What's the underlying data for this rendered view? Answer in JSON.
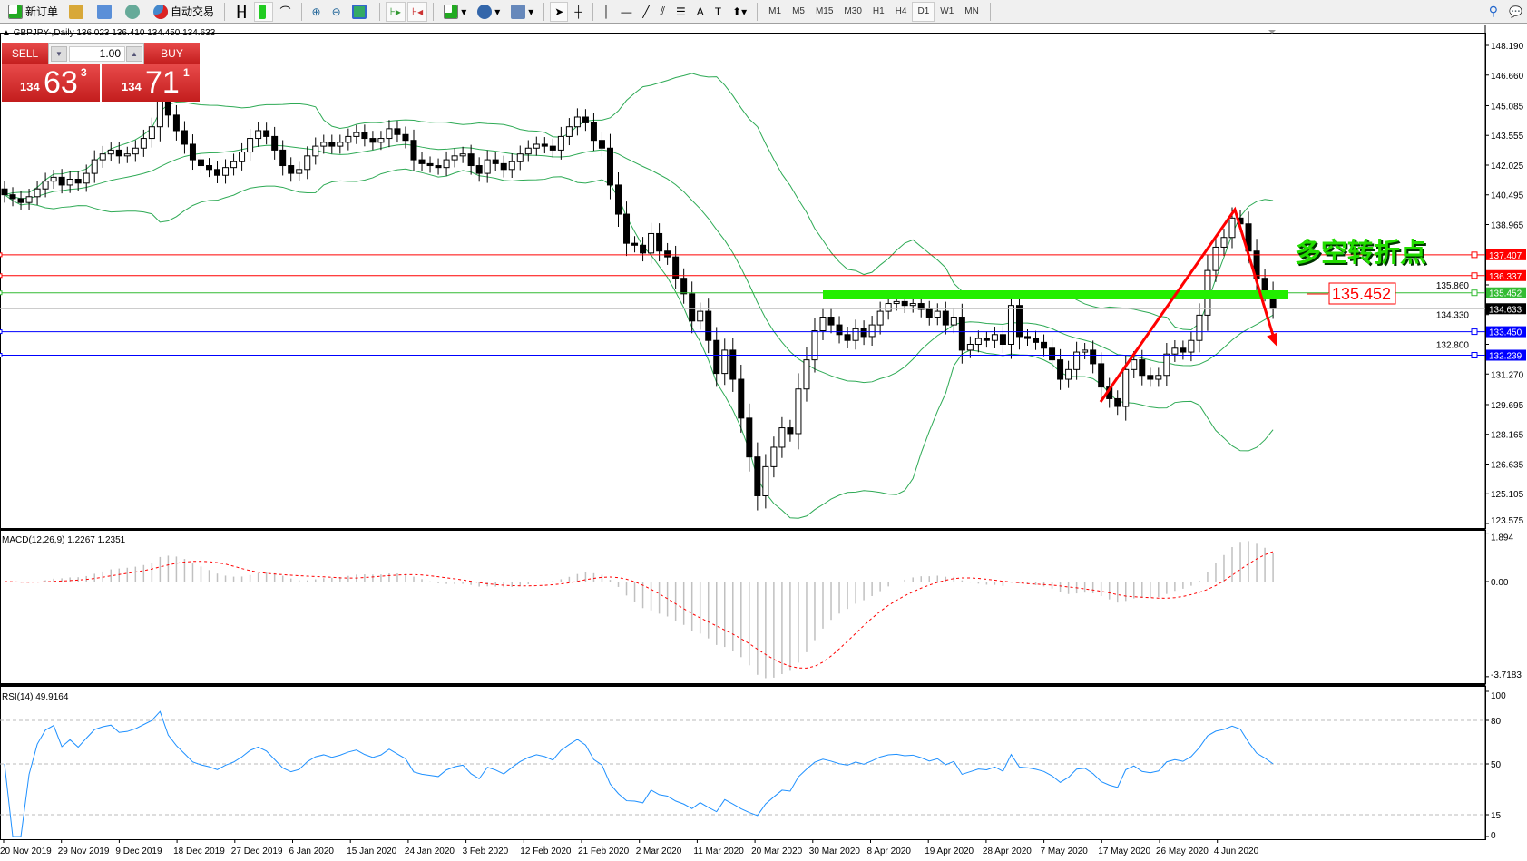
{
  "toolbar": {
    "new_order": "新订单",
    "auto_trading": "自动交易",
    "timeframes": [
      "M1",
      "M5",
      "M15",
      "M30",
      "H1",
      "H4",
      "D1",
      "W1",
      "MN"
    ],
    "active_timeframe": "D1",
    "icons": [
      "new-order-icon",
      "navigator-icon",
      "terminal-icon",
      "signal-icon",
      "auto-trading-icon",
      "bar-chart-icon",
      "candlestick-icon",
      "line-chart-icon",
      "zoom-in-icon",
      "zoom-out-icon",
      "tile-windows-icon",
      "auto-scroll-icon",
      "chart-shift-icon",
      "indicators-icon",
      "periods-icon",
      "templates-icon",
      "cursor-icon",
      "crosshair-icon",
      "vertical-line-icon",
      "horizontal-line-icon",
      "trendline-icon",
      "equidistant-channel-icon",
      "fibonacci-icon",
      "text-icon",
      "text-label-icon",
      "arrows-icon",
      "search-icon",
      "chat-icon"
    ]
  },
  "chart_header": {
    "symbol": "GBPJPY-,Daily",
    "ohlc": "136.023 136.410 134.450 134.633"
  },
  "one_click": {
    "sell": "SELL",
    "buy": "BUY",
    "lot": "1.00",
    "sell_price": {
      "prefix": "134",
      "big": "63",
      "sup": "3"
    },
    "buy_price": {
      "prefix": "134",
      "big": "71",
      "sup": "1"
    }
  },
  "annotation": {
    "text": "多空转折点",
    "price_box": "135.452",
    "text_color": "#22dd00"
  },
  "chart_data": [
    {
      "type": "candlestick",
      "title": "GBPJPY-,Daily",
      "close": [
        140.5,
        140.3,
        140.1,
        140.4,
        140.8,
        141.2,
        141.4,
        141.0,
        141.3,
        141.1,
        141.6,
        142.3,
        142.6,
        142.8,
        142.5,
        142.6,
        142.9,
        143.4,
        144.0,
        146.0,
        144.6,
        143.8,
        143.1,
        142.3,
        142.0,
        141.8,
        141.5,
        141.9,
        142.2,
        142.7,
        143.4,
        143.8,
        143.5,
        142.8,
        142.0,
        141.6,
        141.8,
        142.5,
        143.0,
        143.2,
        143.0,
        143.2,
        143.5,
        143.7,
        143.4,
        143.2,
        143.4,
        143.9,
        143.6,
        143.3,
        142.3,
        142.1,
        142.0,
        141.9,
        142.3,
        142.5,
        142.6,
        142.0,
        141.6,
        142.3,
        142.1,
        141.8,
        142.2,
        142.6,
        142.9,
        143.1,
        143.0,
        142.8,
        143.5,
        144.0,
        144.5,
        144.2,
        143.3,
        142.9,
        141.0,
        139.5,
        138.0,
        137.9,
        137.5,
        138.5,
        137.6,
        137.3,
        136.2,
        135.4,
        134.0,
        134.5,
        133.0,
        131.3,
        132.5,
        131.0,
        129.0,
        127.0,
        125.0,
        126.5,
        127.5,
        128.5,
        128.2,
        130.5,
        132.0,
        133.5,
        134.2,
        133.8,
        133.3,
        133.0,
        133.6,
        133.2,
        133.8,
        134.5,
        134.9,
        135.0,
        134.8,
        134.9,
        134.6,
        134.2,
        134.5,
        133.8,
        134.2,
        132.5,
        132.8,
        133.1,
        133.0,
        133.3,
        132.8,
        134.8,
        133.2,
        133.1,
        132.9,
        132.6,
        132.0,
        131.0,
        131.5,
        132.4,
        132.5,
        131.8,
        130.6,
        130.0,
        129.6,
        131.5,
        132.0,
        131.2,
        131.0,
        131.2,
        132.3,
        132.6,
        132.4,
        133.0,
        134.3,
        136.6,
        137.8,
        138.3,
        139.3,
        139.0,
        137.6,
        136.2,
        135.5,
        134.633
      ],
      "indicator": "Bollinger Bands",
      "y_ticks": [
        "148.190",
        "146.660",
        "145.085",
        "143.555",
        "142.025",
        "140.495",
        "138.965",
        "135.860",
        "134.330",
        "132.800",
        "131.270",
        "129.695",
        "128.165",
        "126.635",
        "125.105",
        "123.575"
      ],
      "ylim": [
        123.575,
        148.19
      ],
      "levels": [
        {
          "price": "137.407",
          "color": "#ff0000"
        },
        {
          "price": "136.337",
          "color": "#ff0000"
        },
        {
          "price": "135.452",
          "color": "#33bb33"
        },
        {
          "price": "134.633",
          "color": "#000000"
        },
        {
          "price": "133.450",
          "color": "#0000ff"
        },
        {
          "price": "132.239",
          "color": "#0000ff"
        }
      ],
      "x_ticks": [
        "20 Nov 2019",
        "29 Nov 2019",
        "9 Dec 2019",
        "18 Dec 2019",
        "27 Dec 2019",
        "6 Jan 2020",
        "15 Jan 2020",
        "24 Jan 2020",
        "3 Feb 2020",
        "12 Feb 2020",
        "21 Feb 2020",
        "2 Mar 2020",
        "11 Mar 2020",
        "20 Mar 2020",
        "30 Mar 2020",
        "8 Apr 2020",
        "19 Apr 2020",
        "28 Apr 2020",
        "7 May 2020",
        "17 May 2020",
        "26 May 2020",
        "4 Jun 2020"
      ]
    },
    {
      "type": "bar+line",
      "title": "MACD(12,26,9) 1.2267 1.2351",
      "y_ticks": [
        "1.894",
        "0.00",
        "-3.7183"
      ],
      "ylim": [
        -3.7183,
        1.894
      ],
      "signal_color": "#ff0000",
      "hist_color": "#c0c0c0"
    },
    {
      "type": "line",
      "title": "RSI(14) 49.9164",
      "y_ticks": [
        "100",
        "80",
        "50",
        "15",
        "0"
      ],
      "ylim": [
        0,
        100
      ],
      "levels": [
        80,
        50,
        15
      ],
      "color": "#1e90ff"
    }
  ]
}
